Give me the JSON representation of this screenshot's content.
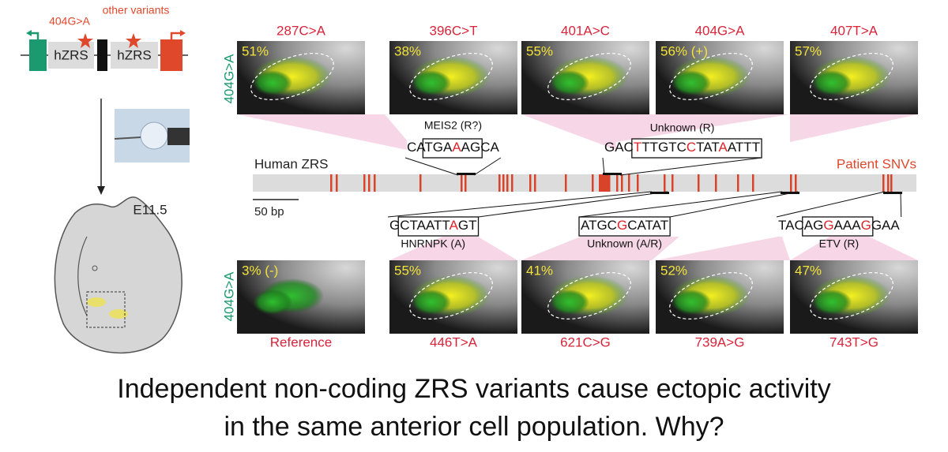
{
  "schematic": {
    "variant": "404G>A",
    "others": "other variants",
    "enhancer1": "hZRS",
    "enhancer2": "hZRS",
    "stage": "E11.5"
  },
  "top_row": {
    "side_label": "404G>A",
    "panels": [
      {
        "variant": "287C>A",
        "activity": "51%"
      },
      {
        "variant": "396C>T",
        "activity": "38%"
      },
      {
        "variant": "401A>C",
        "activity": "55%"
      },
      {
        "variant": "404G>A",
        "activity": "56% (+)"
      },
      {
        "variant": "407T>A",
        "activity": "57%"
      }
    ]
  },
  "zrs": {
    "name": "Human ZRS",
    "snv_label": "Patient SNVs",
    "scale": "50 bp",
    "sites": [
      {
        "sequence": [
          "CA",
          "TGA",
          "A",
          "AG",
          "CA"
        ],
        "highlight": [
          2
        ],
        "box": [
          1,
          3
        ],
        "factor": "MEIS2 (R?)"
      },
      {
        "sequence": [
          "GAC",
          "T",
          "TTGTC",
          "C",
          "TAT",
          "A",
          "ATTT"
        ],
        "highlight": [
          1,
          3,
          5
        ],
        "box": [
          1,
          6
        ],
        "factor": "Unknown (R)"
      },
      {
        "sequence": [
          "G",
          "CTAATT",
          "A",
          "GT"
        ],
        "highlight": [
          2
        ],
        "box": [
          1,
          3
        ],
        "factor": "HNRNPK (A)"
      },
      {
        "sequence": [
          "ATGC",
          "G",
          "CATAT"
        ],
        "highlight": [
          1
        ],
        "box": [
          0,
          2
        ],
        "factor": "Unknown (A/R)"
      },
      {
        "sequence": [
          "TAC",
          "AG",
          "G",
          "AAA",
          "G",
          "GAA"
        ],
        "highlight": [
          2,
          4
        ],
        "box": [
          1,
          4
        ],
        "factor": "ETV (R)"
      }
    ]
  },
  "bottom_row": {
    "side_label": "404G>A",
    "panels": [
      {
        "variant": "Reference",
        "activity": "3% (-)"
      },
      {
        "variant": "446T>A",
        "activity": "55%"
      },
      {
        "variant": "621C>G",
        "activity": "41%"
      },
      {
        "variant": "739A>G",
        "activity": "52%"
      },
      {
        "variant": "743T>G",
        "activity": "47%"
      }
    ]
  },
  "caption": [
    "Independent non-coding ZRS variants cause ectopic activity",
    "in the same anterior cell population. Why?"
  ]
}
